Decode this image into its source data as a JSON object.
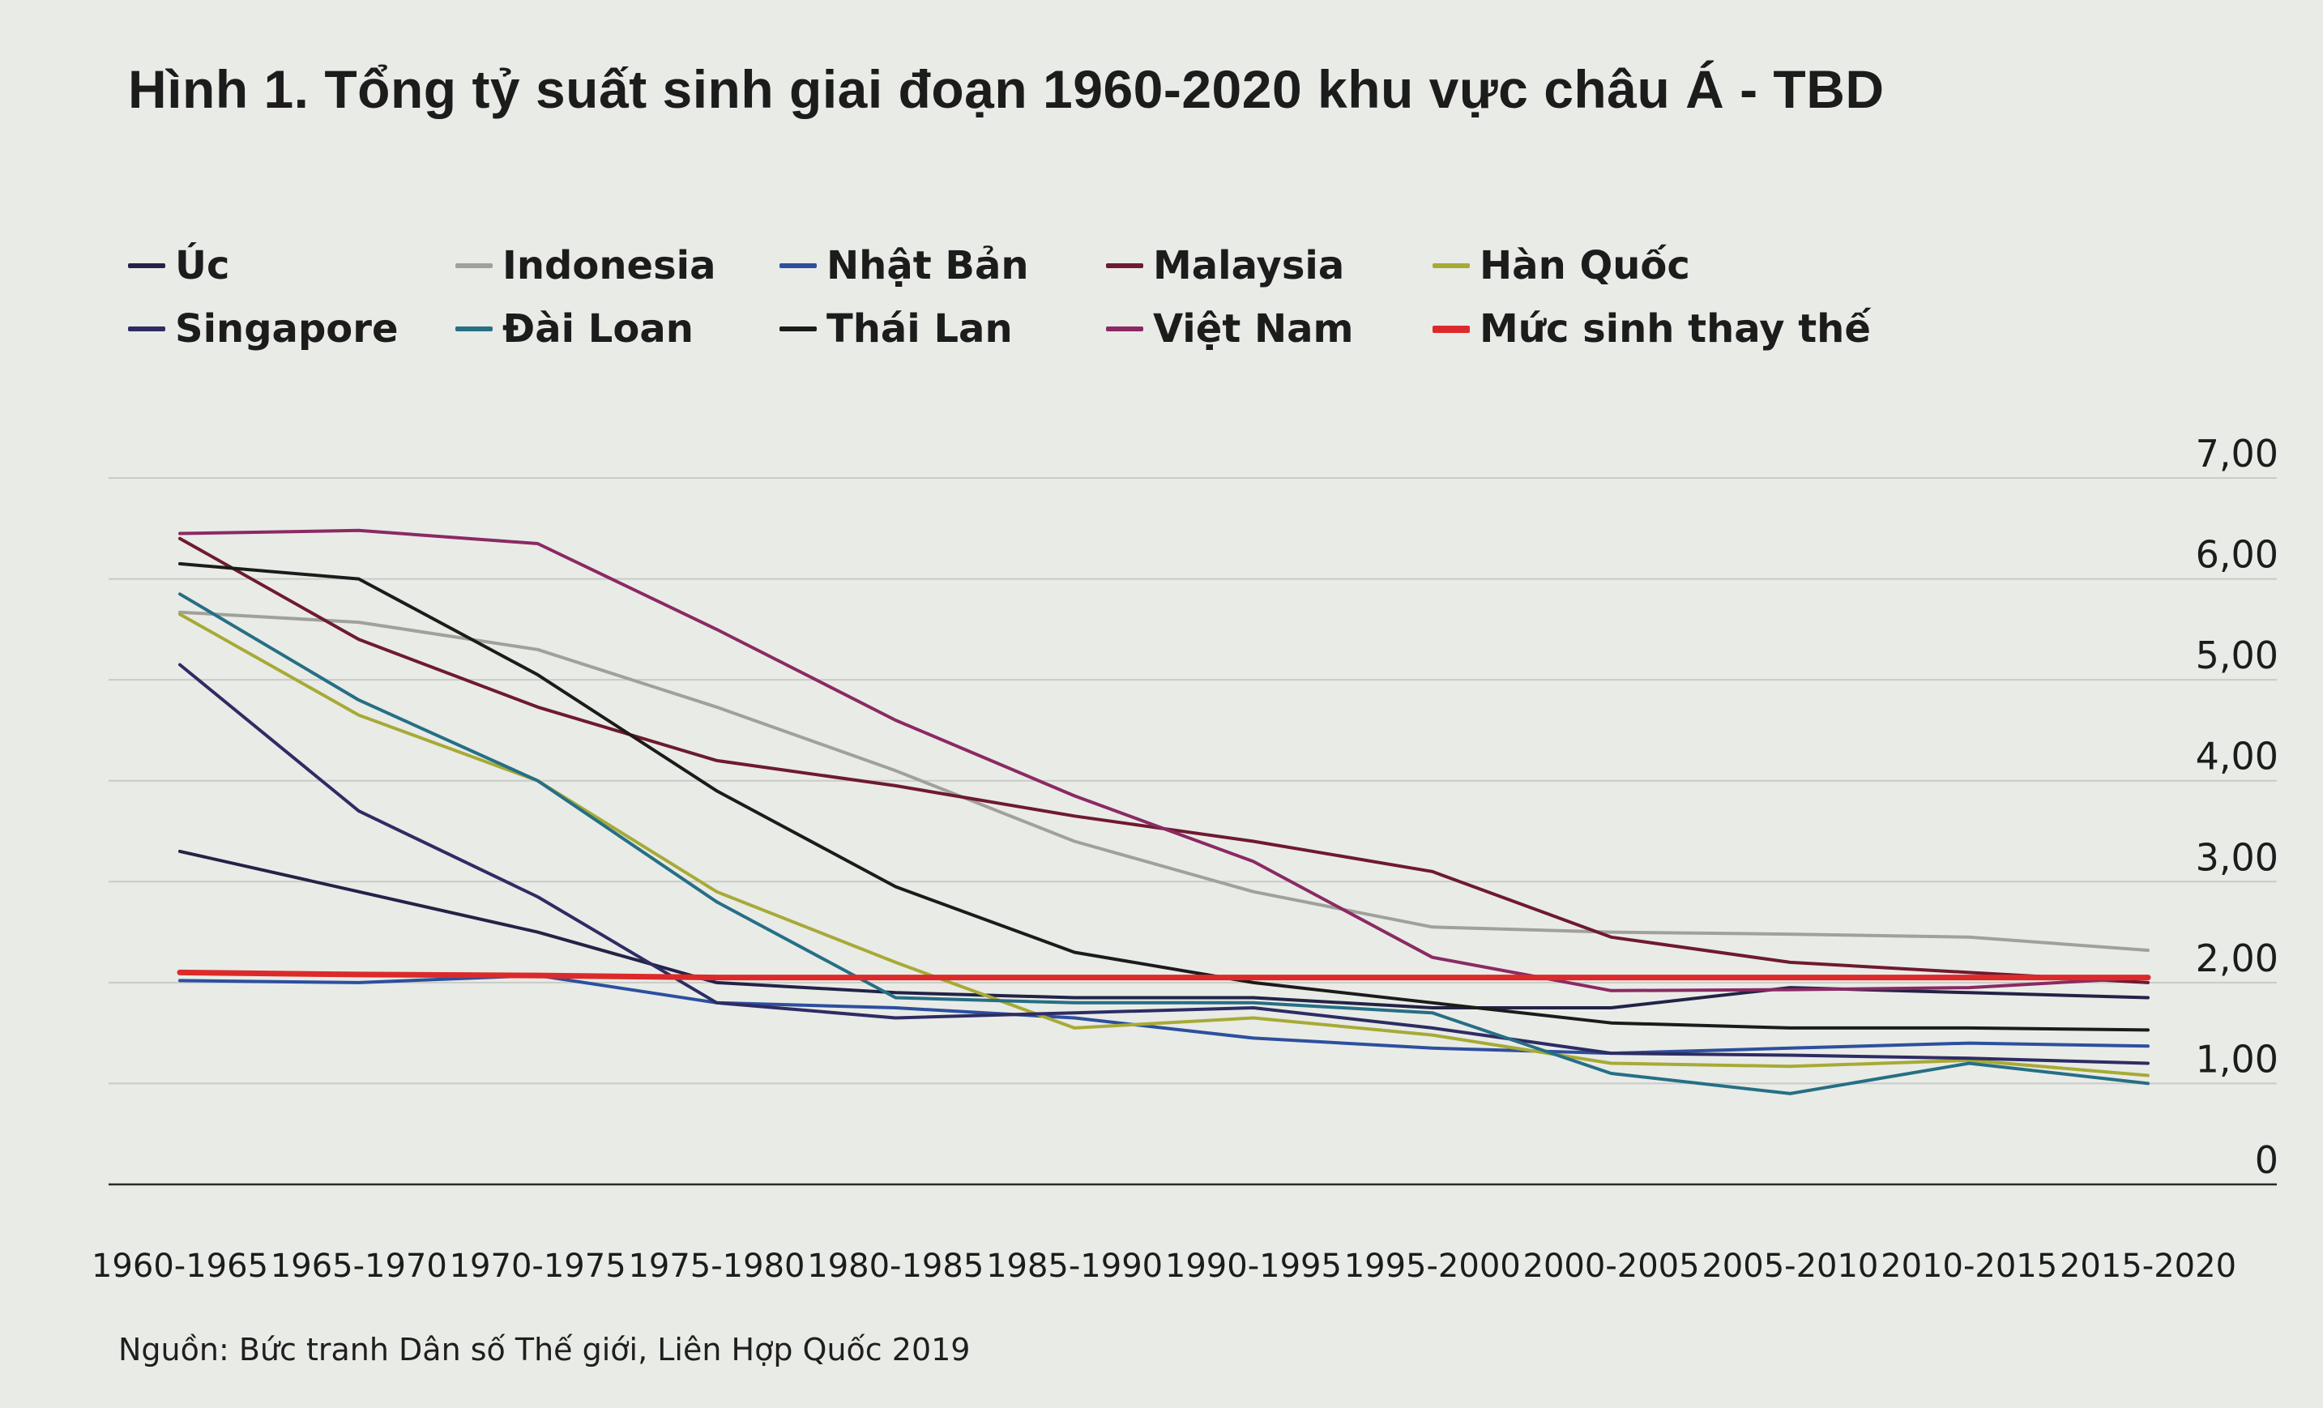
{
  "title": "Hình 1. Tổng tỷ suất sinh giai đoạn 1960-2020 khu vực châu Á - TBD",
  "source": "Nguồn: Bức tranh Dân số Thế giới, Liên Hợp Quốc 2019",
  "chart_data": {
    "type": "line",
    "categories": [
      "1960-1965",
      "1965-1970",
      "1970-1975",
      "1975-1980",
      "1980-1985",
      "1985-1990",
      "1990-1995",
      "1995-2000",
      "2000-2005",
      "2005-2010",
      "2010-2015",
      "2015-2020"
    ],
    "ylim": [
      0,
      7
    ],
    "yticks": [
      "0",
      "1,00",
      "2,00",
      "3,00",
      "4,00",
      "5,00",
      "6,00",
      "7,00"
    ],
    "y_axis_position": "right",
    "grid": true,
    "legend_position": "top",
    "series": [
      {
        "name": "Úc",
        "color": "#232347",
        "values": [
          3.3,
          2.9,
          2.5,
          2.0,
          1.9,
          1.85,
          1.85,
          1.75,
          1.75,
          1.95,
          1.9,
          1.85
        ]
      },
      {
        "name": "Indonesia",
        "color": "#a1a19b",
        "values": [
          5.67,
          5.57,
          5.3,
          4.73,
          4.1,
          3.4,
          2.9,
          2.55,
          2.5,
          2.48,
          2.45,
          2.32
        ]
      },
      {
        "name": "Nhật Bản",
        "color": "#2d4f9e",
        "values": [
          2.02,
          2.0,
          2.07,
          1.8,
          1.75,
          1.65,
          1.45,
          1.35,
          1.3,
          1.35,
          1.4,
          1.37
        ]
      },
      {
        "name": "Malaysia",
        "color": "#6e1a2f",
        "values": [
          6.4,
          5.4,
          4.73,
          4.2,
          3.95,
          3.65,
          3.4,
          3.1,
          2.45,
          2.2,
          2.1,
          2.0
        ]
      },
      {
        "name": "Hàn Quốc",
        "color": "#a7aa35",
        "values": [
          5.65,
          4.65,
          4.0,
          2.9,
          2.2,
          1.55,
          1.65,
          1.48,
          1.2,
          1.17,
          1.23,
          1.08
        ]
      },
      {
        "name": "Singapore",
        "color": "#2e2c63",
        "values": [
          5.15,
          3.7,
          2.85,
          1.8,
          1.65,
          1.7,
          1.75,
          1.55,
          1.3,
          1.28,
          1.25,
          1.2
        ]
      },
      {
        "name": "Đài Loan",
        "color": "#266f85",
        "values": [
          5.85,
          4.8,
          4.0,
          2.8,
          1.85,
          1.8,
          1.8,
          1.7,
          1.1,
          0.9,
          1.2,
          1.0
        ]
      },
      {
        "name": "Thái Lan",
        "color": "#1b1b1b",
        "values": [
          6.15,
          6.0,
          5.05,
          3.9,
          2.95,
          2.3,
          2.0,
          1.8,
          1.6,
          1.55,
          1.55,
          1.53
        ]
      },
      {
        "name": "Việt Nam",
        "color": "#8a2a63",
        "values": [
          6.45,
          6.48,
          6.35,
          5.5,
          4.6,
          3.85,
          3.2,
          2.25,
          1.92,
          1.93,
          1.95,
          2.05
        ]
      },
      {
        "name": "Mức sinh thay thế",
        "color": "#dc2a2a",
        "values": [
          2.1,
          2.08,
          2.07,
          2.05,
          2.05,
          2.05,
          2.05,
          2.05,
          2.05,
          2.05,
          2.05,
          2.05
        ]
      }
    ]
  }
}
